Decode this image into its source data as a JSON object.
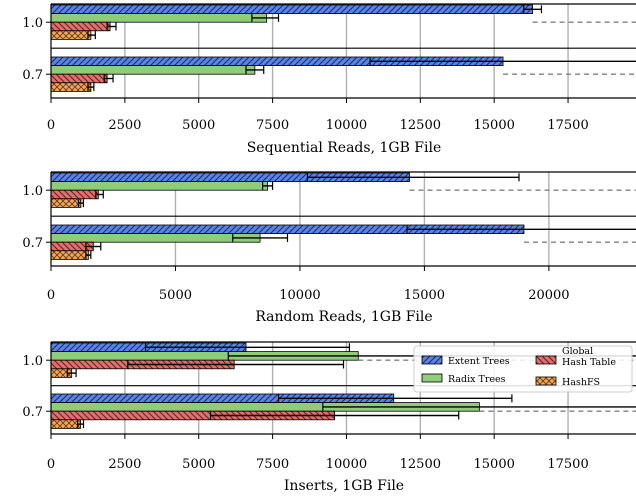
{
  "figure": {
    "series_styles": [
      {
        "name": "Extent Trees",
        "color": "#5b84e0",
        "hatch": "diag"
      },
      {
        "name": "Radix Trees",
        "color": "#8fcc7a",
        "hatch": "none"
      },
      {
        "name": "Global Hash Table",
        "color": "#e07070",
        "hatch": "backdiag"
      },
      {
        "name": "HashFS",
        "color": "#f0a860",
        "hatch": "cross"
      }
    ],
    "legend": {
      "placement": "right",
      "entries": [
        {
          "lines": [
            "Extent Trees"
          ]
        },
        {
          "lines": [
            "Global",
            "Hash Table"
          ]
        },
        {
          "lines": [
            "Radix Trees"
          ]
        },
        {
          "lines": [
            "HashFS"
          ]
        }
      ]
    }
  },
  "chart_data": [
    {
      "type": "bar",
      "orientation": "horizontal",
      "title": "",
      "xlabel": "Sequential Reads, 1GB File",
      "ylabel": "",
      "categories": [
        "1.0",
        "0.7"
      ],
      "xlim": [
        0,
        19800
      ],
      "xticks": [
        0,
        2500,
        5000,
        7500,
        10000,
        12500,
        15000,
        17500
      ],
      "grid": "vertical",
      "series": [
        {
          "name": "Extent Trees",
          "values": [
            16300,
            15300
          ],
          "err_low": [
            16000,
            10800
          ],
          "err_high": [
            16600,
            19800
          ]
        },
        {
          "name": "Radix Trees",
          "values": [
            7300,
            6900
          ],
          "err_low": [
            6800,
            6600
          ],
          "err_high": [
            7700,
            7200
          ]
        },
        {
          "name": "Global Hash Table",
          "values": [
            2000,
            1900
          ],
          "err_low": [
            1900,
            1800
          ],
          "err_high": [
            2200,
            2100
          ]
        },
        {
          "name": "HashFS",
          "values": [
            1350,
            1350
          ],
          "err_low": [
            1250,
            1250
          ],
          "err_high": [
            1500,
            1450
          ]
        }
      ],
      "reference_lines": [
        16300,
        15300
      ]
    },
    {
      "type": "bar",
      "orientation": "horizontal",
      "title": "",
      "xlabel": "Random Reads, 1GB File",
      "ylabel": "",
      "categories": [
        "1.0",
        "0.7"
      ],
      "xlim": [
        0,
        23500
      ],
      "xticks": [
        0,
        5000,
        10000,
        15000,
        20000
      ],
      "grid": "vertical",
      "series": [
        {
          "name": "Extent Trees",
          "values": [
            14400,
            19000
          ],
          "err_low": [
            10300,
            14300
          ],
          "err_high": [
            18800,
            23500
          ]
        },
        {
          "name": "Radix Trees",
          "values": [
            8700,
            8400
          ],
          "err_low": [
            8500,
            7300
          ],
          "err_high": [
            8900,
            9500
          ]
        },
        {
          "name": "Global Hash Table",
          "values": [
            1900,
            1700
          ],
          "err_low": [
            1800,
            1400
          ],
          "err_high": [
            2100,
            2000
          ]
        },
        {
          "name": "HashFS",
          "values": [
            1200,
            1500
          ],
          "err_low": [
            1100,
            1400
          ],
          "err_high": [
            1300,
            1600
          ]
        }
      ],
      "reference_lines": [
        14400,
        19000
      ]
    },
    {
      "type": "bar",
      "orientation": "horizontal",
      "title": "",
      "xlabel": "Inserts, 1GB File",
      "ylabel": "",
      "categories": [
        "1.0",
        "0.7"
      ],
      "xlim": [
        0,
        19800
      ],
      "xticks": [
        0,
        2500,
        5000,
        7500,
        10000,
        12500,
        15000,
        17500
      ],
      "grid": "vertical",
      "series": [
        {
          "name": "Extent Trees",
          "values": [
            6600,
            11600
          ],
          "err_low": [
            3200,
            7700
          ],
          "err_high": [
            10100,
            15600
          ]
        },
        {
          "name": "Radix Trees",
          "values": [
            10400,
            14500
          ],
          "err_low": [
            6000,
            9200
          ],
          "err_high": [
            19800,
            19800
          ]
        },
        {
          "name": "Global Hash Table",
          "values": [
            6200,
            9600
          ],
          "err_low": [
            2600,
            5400
          ],
          "err_high": [
            9900,
            13800
          ]
        },
        {
          "name": "HashFS",
          "values": [
            700,
            1000
          ],
          "err_low": [
            550,
            900
          ],
          "err_high": [
            850,
            1100
          ]
        }
      ],
      "reference_lines": [
        10400,
        14500
      ]
    }
  ]
}
